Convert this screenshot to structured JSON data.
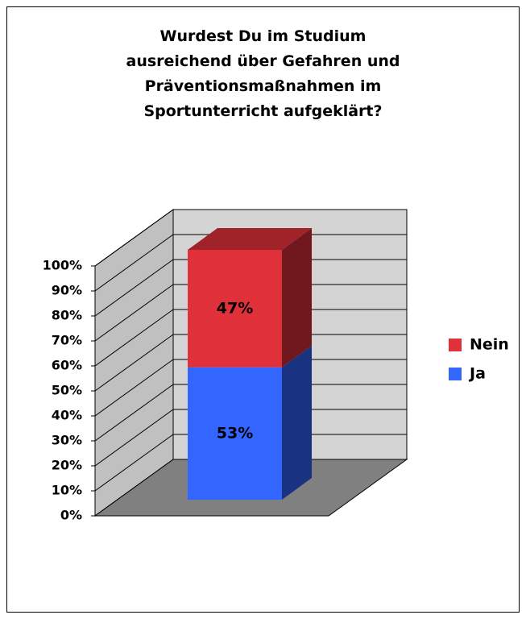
{
  "chart_data": {
    "type": "bar3d_stacked",
    "title": "Wurdest Du im Studium\nausreichend über Gefahren und\nPräventionsmaßnahmen im\nSportunterricht aufgeklärt?",
    "categories": [
      null
    ],
    "series": [
      {
        "name": "Ja",
        "color": "#3366ff",
        "values": [
          53
        ],
        "value_labels": [
          "53%"
        ]
      },
      {
        "name": "Nein",
        "color": "#e0303a",
        "values": [
          47
        ],
        "value_labels": [
          "47%"
        ]
      }
    ],
    "ylim": [
      0,
      100
    ],
    "yticks": [
      {
        "value": 0,
        "label": "0%"
      },
      {
        "value": 10,
        "label": "10%"
      },
      {
        "value": 20,
        "label": "20%"
      },
      {
        "value": 30,
        "label": "30%"
      },
      {
        "value": 40,
        "label": "40%"
      },
      {
        "value": 50,
        "label": "50%"
      },
      {
        "value": 60,
        "label": "60%"
      },
      {
        "value": 70,
        "label": "70%"
      },
      {
        "value": 80,
        "label": "80%"
      },
      {
        "value": 90,
        "label": "90%"
      },
      {
        "value": 100,
        "label": "100%"
      }
    ],
    "grid": true,
    "legend": "right"
  }
}
